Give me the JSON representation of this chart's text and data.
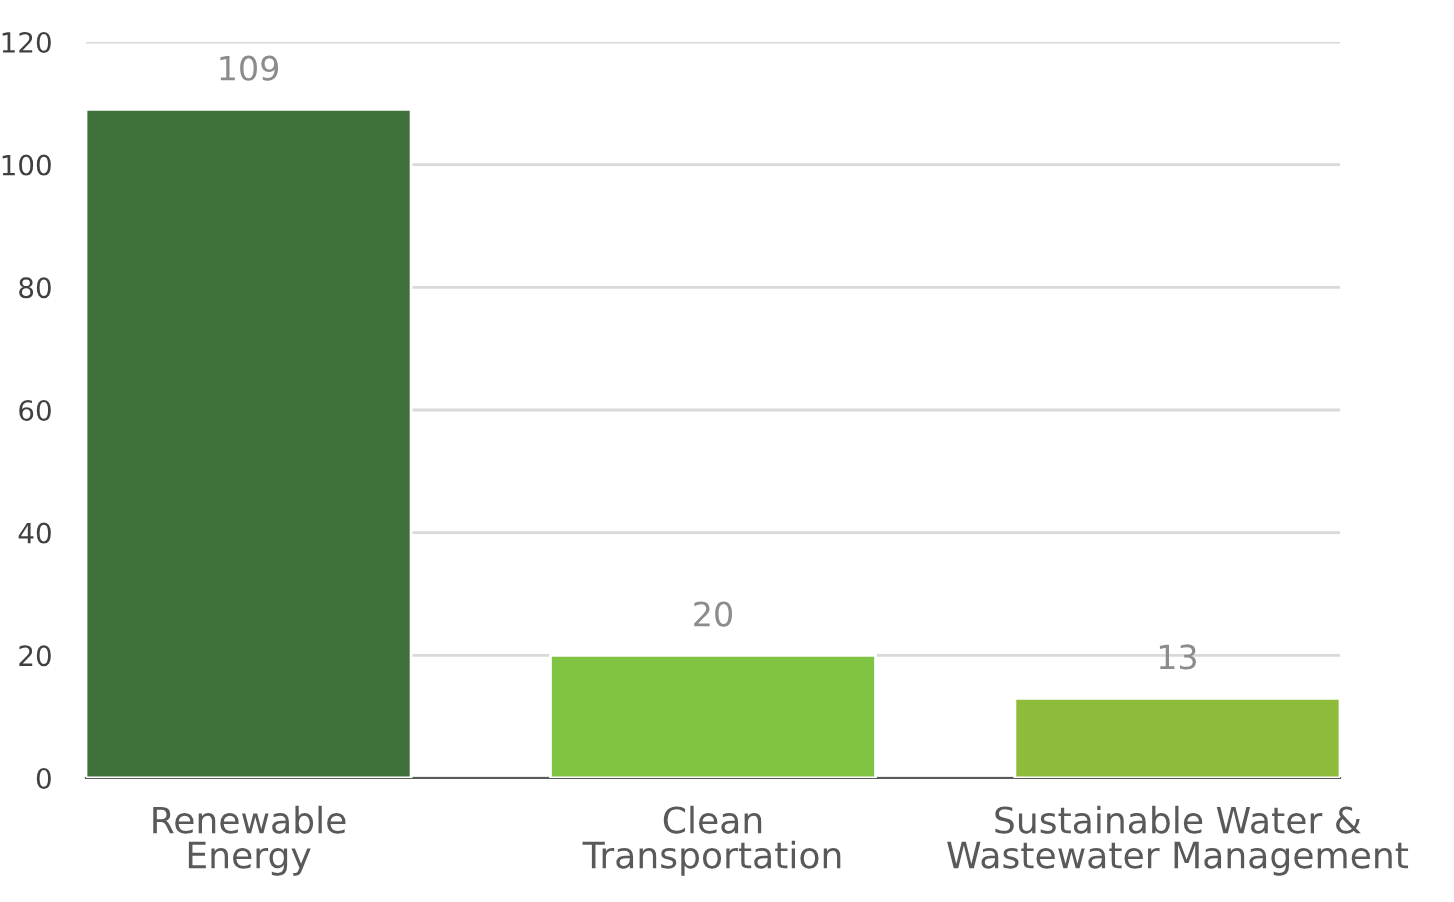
{
  "chart_data": {
    "type": "bar",
    "categories": [
      "Renewable\nEnergy",
      "Clean\nTransportation",
      "Sustainable Water &\nWastewater Management"
    ],
    "values": [
      109,
      20,
      13
    ],
    "colors": [
      "#41713a",
      "#80c342",
      "#8fbb3a"
    ],
    "ylim": [
      0,
      120
    ],
    "yticks": [
      0,
      20,
      40,
      60,
      80,
      100,
      120
    ],
    "grid": "y",
    "data_labels": true
  }
}
